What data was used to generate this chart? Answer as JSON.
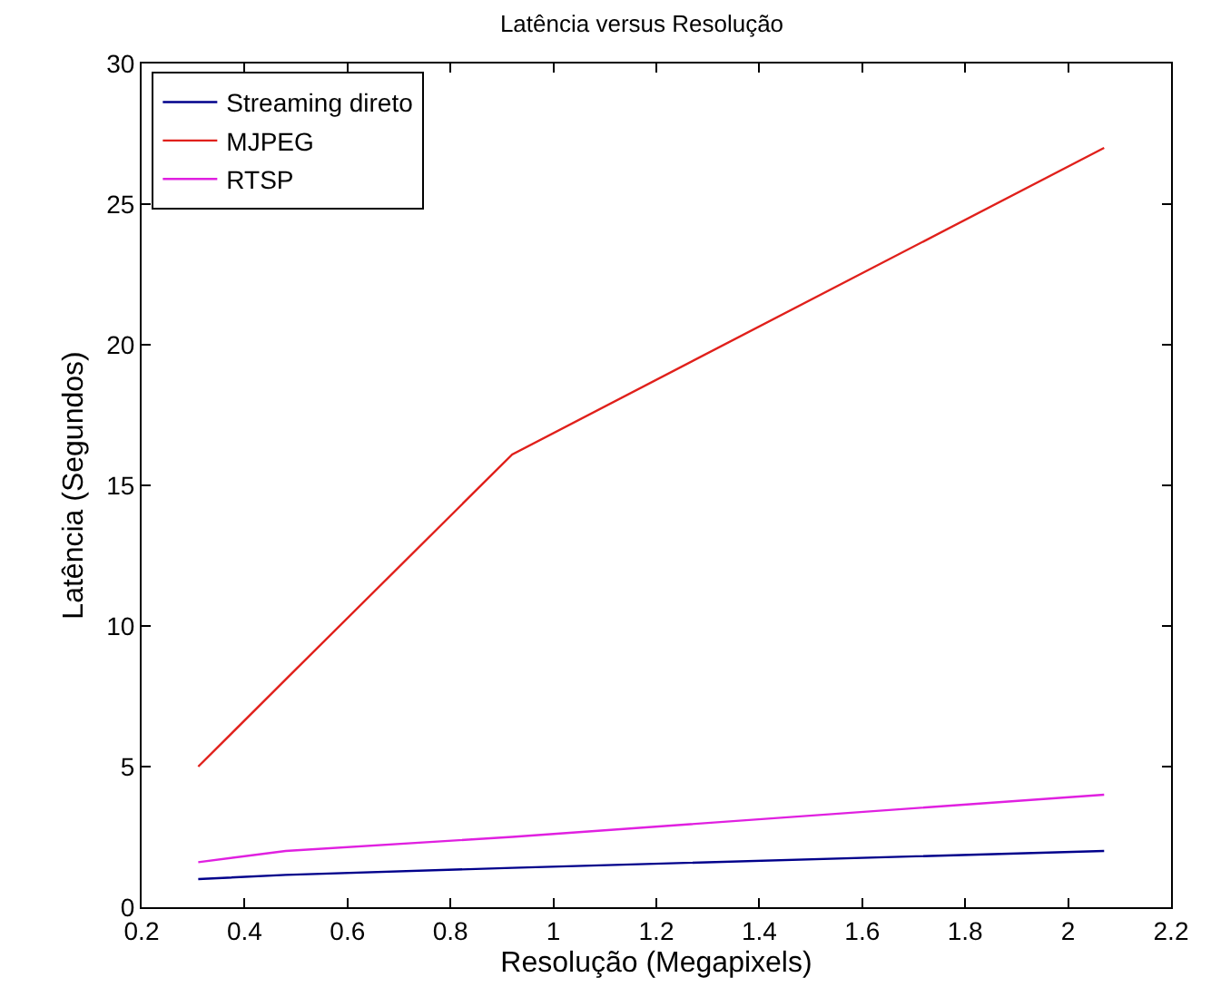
{
  "chart_data": {
    "type": "line",
    "title": "Latência versus Resolução",
    "xlabel": "Resolução (Megapixels)",
    "ylabel": "Latência (Segundos)",
    "x": [
      0.31,
      0.48,
      0.92,
      2.07
    ],
    "series": [
      {
        "name": "Streaming direto",
        "color": "#00008b",
        "values": [
          1.0,
          1.15,
          1.4,
          2.0
        ]
      },
      {
        "name": "MJPEG",
        "color": "#e0201b",
        "values": [
          5.0,
          8.1,
          16.1,
          27.0
        ]
      },
      {
        "name": "RTSP",
        "color": "#e020e0",
        "values": [
          1.6,
          2.0,
          2.5,
          4.0
        ]
      }
    ],
    "xlim": [
      0.2,
      2.2
    ],
    "xticks": [
      0.2,
      0.4,
      0.6,
      0.8,
      1,
      1.2,
      1.4,
      1.6,
      1.8,
      2,
      2.2
    ],
    "ylim": [
      0,
      30
    ],
    "yticks": [
      0,
      5,
      10,
      15,
      20,
      25,
      30
    ],
    "grid": false,
    "legend": "top left",
    "marker": "none",
    "line_style": "solid"
  }
}
